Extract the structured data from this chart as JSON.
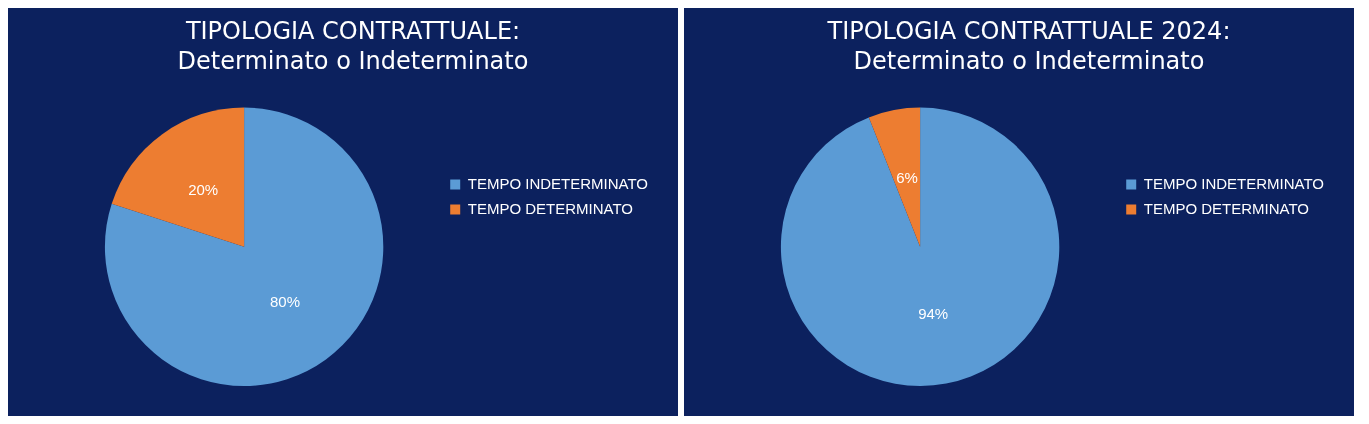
{
  "chart_data": [
    {
      "type": "pie",
      "title": "TIPOLOGIA CONTRATTUALE:",
      "subtitle": "Determinato o Indeterminato",
      "categories": [
        "TEMPO INDETERMINATO",
        "TEMPO DETERMINATO"
      ],
      "values": [
        80,
        20
      ],
      "value_labels": [
        "80%",
        "20%"
      ],
      "colors": [
        "#5b9bd5",
        "#ed7d31"
      ],
      "legend": "right"
    },
    {
      "type": "pie",
      "title": "TIPOLOGIA CONTRATTUALE 2024:",
      "subtitle": "Determinato o Indeterminato",
      "categories": [
        "TEMPO INDETERMINATO",
        "TEMPO DETERMINATO"
      ],
      "values": [
        94,
        6
      ],
      "value_labels": [
        "94%",
        "6%"
      ],
      "colors": [
        "#5b9bd5",
        "#ed7d31"
      ],
      "legend": "right"
    }
  ]
}
